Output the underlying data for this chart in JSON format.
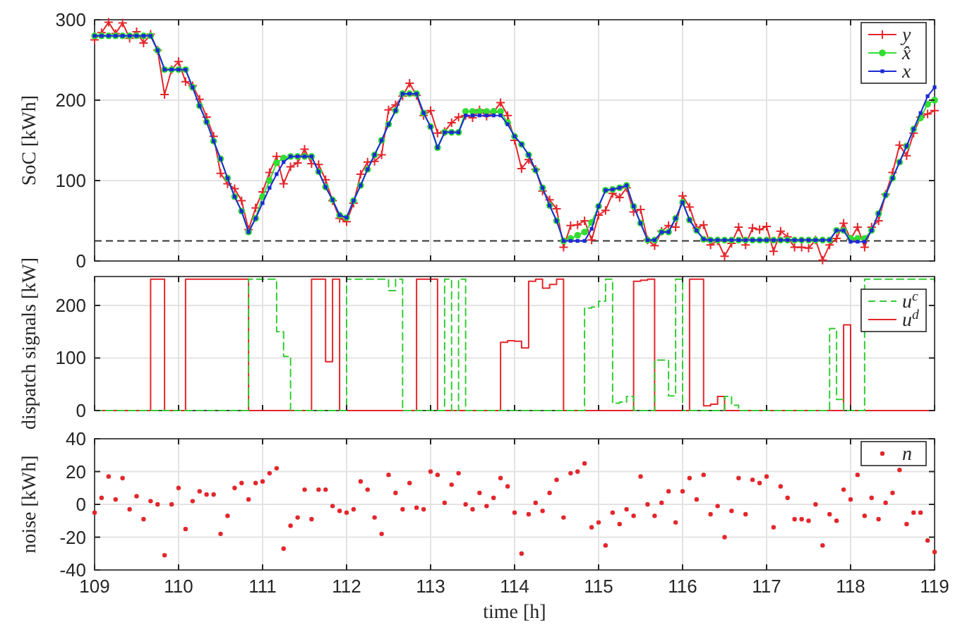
{
  "chart_data": [
    {
      "type": "line",
      "ylabel": "SoC [kWh]",
      "xlim": [
        109,
        119
      ],
      "xticks": [
        109,
        110,
        111,
        112,
        113,
        114,
        115,
        116,
        117,
        118,
        119
      ],
      "ylim": [
        0,
        300
      ],
      "yticks": [
        0,
        100,
        200,
        300
      ],
      "tick_labels": "y",
      "grid": true,
      "legend": "top right",
      "x": [
        109,
        109.083,
        109.167,
        109.25,
        109.333,
        109.417,
        109.5,
        109.583,
        109.667,
        109.75,
        109.833,
        109.917,
        110,
        110.083,
        110.167,
        110.25,
        110.333,
        110.417,
        110.5,
        110.583,
        110.667,
        110.75,
        110.833,
        110.917,
        111,
        111.083,
        111.167,
        111.25,
        111.333,
        111.417,
        111.5,
        111.583,
        111.667,
        111.75,
        111.833,
        111.917,
        112,
        112.083,
        112.167,
        112.25,
        112.333,
        112.417,
        112.5,
        112.583,
        112.667,
        112.75,
        112.833,
        112.917,
        113,
        113.083,
        113.167,
        113.25,
        113.333,
        113.417,
        113.5,
        113.583,
        113.667,
        113.75,
        113.833,
        113.917,
        114,
        114.083,
        114.167,
        114.25,
        114.333,
        114.417,
        114.5,
        114.583,
        114.667,
        114.75,
        114.833,
        114.917,
        115,
        115.083,
        115.167,
        115.25,
        115.333,
        115.417,
        115.5,
        115.583,
        115.667,
        115.75,
        115.833,
        115.917,
        116,
        116.083,
        116.167,
        116.25,
        116.333,
        116.417,
        116.5,
        116.583,
        116.667,
        116.75,
        116.833,
        116.917,
        117,
        117.083,
        117.167,
        117.25,
        117.333,
        117.417,
        117.5,
        117.583,
        117.667,
        117.75,
        117.833,
        117.917,
        118,
        118.083,
        118.167,
        118.25,
        118.333,
        118.417,
        118.5,
        118.583,
        118.667,
        118.75,
        118.833,
        118.917,
        119
      ],
      "ref_lines": [
        {
          "axis": "y",
          "value": 25,
          "color": "#333333",
          "line_style": "dashed"
        }
      ],
      "series": [
        {
          "name": "y",
          "color": "#e3262b",
          "marker": "cross",
          "values": [
            275,
            284,
            297,
            283,
            296,
            277,
            285,
            271,
            282,
            262,
            207,
            238,
            248,
            223,
            218,
            201,
            179,
            155,
            109,
            96,
            90,
            75,
            39,
            66,
            86,
            110,
            130,
            96,
            117,
            122,
            139,
            121,
            120,
            101,
            75,
            53,
            49,
            72,
            108,
            123,
            124,
            132,
            188,
            194,
            205,
            221,
            206,
            181,
            187,
            159,
            161,
            172,
            179,
            181,
            178,
            188,
            180,
            185,
            197,
            181,
            150,
            115,
            126,
            114,
            87,
            76,
            65,
            17,
            44,
            45,
            50,
            26,
            57,
            63,
            84,
            79,
            91,
            61,
            64,
            26,
            19,
            37,
            44,
            42,
            81,
            67,
            41,
            45,
            20,
            25,
            6,
            22,
            42,
            20,
            41,
            39,
            43,
            12,
            37,
            30,
            17,
            17,
            16,
            26,
            1,
            20,
            28,
            47,
            27,
            42,
            17,
            42,
            50,
            83,
            110,
            144,
            131,
            159,
            179,
            183,
            187
          ]
        },
        {
          "name": "x̂",
          "color": "#33dd33",
          "marker": "circle",
          "values": [
            280,
            280,
            280,
            280,
            280,
            280,
            280,
            280,
            280,
            262,
            238,
            238,
            238,
            238,
            216,
            193,
            173,
            149,
            127,
            103,
            80,
            62,
            36,
            53,
            80,
            100,
            122,
            128,
            130,
            130,
            130,
            130,
            111,
            92,
            76,
            57,
            54,
            75,
            94,
            114,
            132,
            150,
            170,
            187,
            208,
            208,
            208,
            184,
            167,
            141,
            160,
            160,
            160,
            186,
            186,
            186,
            186,
            186,
            186,
            172,
            155,
            145,
            132,
            113,
            91,
            69,
            50,
            25,
            28,
            32,
            36,
            48,
            68,
            88,
            89,
            91,
            94,
            68,
            47,
            26,
            26,
            36,
            36,
            53,
            73,
            51,
            38,
            27,
            26,
            26,
            26,
            26,
            26,
            26,
            26,
            26,
            26,
            26,
            26,
            26,
            26,
            26,
            26,
            26,
            26,
            26,
            38,
            38,
            28,
            28,
            28,
            38,
            59,
            82,
            103,
            123,
            143,
            164,
            178,
            195,
            200
          ]
        },
        {
          "name": "x",
          "color": "#1c2ad6",
          "marker": "square",
          "values": [
            280,
            280,
            280,
            280,
            280,
            280,
            280,
            280,
            280,
            262,
            238,
            238,
            238,
            238,
            216,
            193,
            173,
            149,
            127,
            103,
            80,
            62,
            36,
            53,
            72,
            91,
            108,
            123,
            130,
            130,
            130,
            130,
            111,
            92,
            76,
            57,
            54,
            75,
            94,
            114,
            132,
            150,
            170,
            187,
            208,
            208,
            208,
            184,
            167,
            141,
            160,
            160,
            160,
            181,
            181,
            181,
            181,
            181,
            181,
            170,
            155,
            145,
            132,
            113,
            91,
            69,
            50,
            25,
            25,
            25,
            25,
            40,
            68,
            88,
            89,
            91,
            94,
            68,
            47,
            26,
            26,
            36,
            36,
            53,
            73,
            51,
            38,
            27,
            26,
            26,
            26,
            26,
            26,
            26,
            26,
            26,
            26,
            26,
            26,
            26,
            26,
            26,
            26,
            26,
            26,
            26,
            38,
            38,
            24,
            24,
            24,
            38,
            59,
            82,
            103,
            123,
            143,
            164,
            184,
            205,
            216
          ]
        }
      ]
    },
    {
      "type": "step",
      "ylabel": "dispatch signals [kW]",
      "xlim": [
        109,
        119
      ],
      "xticks": [
        109,
        110,
        111,
        112,
        113,
        114,
        115,
        116,
        117,
        118,
        119
      ],
      "ylim": [
        0,
        255
      ],
      "yticks": [
        0,
        100,
        200
      ],
      "tick_labels": "y",
      "grid": true,
      "legend": "top right",
      "x": [
        109,
        109.083,
        109.167,
        109.25,
        109.333,
        109.417,
        109.5,
        109.583,
        109.667,
        109.75,
        109.833,
        109.917,
        110,
        110.083,
        110.167,
        110.25,
        110.333,
        110.417,
        110.5,
        110.583,
        110.667,
        110.75,
        110.833,
        110.917,
        111,
        111.083,
        111.167,
        111.25,
        111.333,
        111.417,
        111.5,
        111.583,
        111.667,
        111.75,
        111.833,
        111.917,
        112,
        112.083,
        112.167,
        112.25,
        112.333,
        112.417,
        112.5,
        112.583,
        112.667,
        112.75,
        112.833,
        112.917,
        113,
        113.083,
        113.167,
        113.25,
        113.333,
        113.417,
        113.5,
        113.583,
        113.667,
        113.75,
        113.833,
        113.917,
        114,
        114.083,
        114.167,
        114.25,
        114.333,
        114.417,
        114.5,
        114.583,
        114.667,
        114.75,
        114.833,
        114.917,
        115,
        115.083,
        115.167,
        115.25,
        115.333,
        115.417,
        115.5,
        115.583,
        115.667,
        115.75,
        115.833,
        115.917,
        116,
        116.083,
        116.167,
        116.25,
        116.333,
        116.417,
        116.5,
        116.583,
        116.667,
        116.75,
        116.833,
        116.917,
        117,
        117.083,
        117.167,
        117.25,
        117.333,
        117.417,
        117.5,
        117.583,
        117.667,
        117.75,
        117.833,
        117.917,
        118,
        118.083,
        118.167,
        118.25,
        118.333,
        118.417,
        118.5,
        118.583,
        118.667,
        118.75,
        118.833,
        118.917,
        119
      ],
      "series": [
        {
          "name": "u$^{c}$",
          "color": "#33cc33",
          "line_style": "dashed",
          "values": [
            0,
            0,
            0,
            0,
            0,
            0,
            0,
            0,
            0,
            0,
            0,
            0,
            0,
            0,
            0,
            0,
            0,
            0,
            0,
            0,
            0,
            0,
            250,
            250,
            250,
            250,
            150,
            103,
            0,
            0,
            0,
            0,
            0,
            0,
            0,
            0,
            250,
            250,
            250,
            250,
            250,
            250,
            228,
            250,
            0,
            0,
            0,
            0,
            0,
            0,
            250,
            0,
            250,
            0,
            0,
            0,
            0,
            0,
            0,
            0,
            0,
            0,
            0,
            0,
            0,
            0,
            0,
            0,
            0,
            0,
            195,
            197,
            208,
            250,
            14,
            16,
            27,
            0,
            0,
            0,
            96,
            96,
            28,
            250,
            0,
            0,
            0,
            0,
            0,
            0,
            27,
            10,
            0,
            0,
            0,
            0,
            0,
            0,
            0,
            0,
            0,
            0,
            0,
            0,
            0,
            156,
            21,
            0,
            0,
            0,
            250,
            250,
            250,
            250,
            250,
            250,
            250,
            250,
            250,
            250,
            250
          ]
        },
        {
          "name": "u$^{d}$",
          "color": "#e3262b",
          "line_style": "solid",
          "values": [
            0,
            0,
            0,
            0,
            0,
            0,
            0,
            0,
            250,
            250,
            0,
            0,
            0,
            250,
            250,
            250,
            250,
            250,
            250,
            250,
            250,
            250,
            0,
            0,
            0,
            0,
            0,
            0,
            0,
            0,
            0,
            250,
            250,
            93,
            250,
            0,
            0,
            0,
            0,
            0,
            0,
            0,
            0,
            0,
            0,
            0,
            250,
            250,
            250,
            0,
            0,
            0,
            0,
            0,
            0,
            0,
            0,
            0,
            130,
            133,
            132,
            119,
            246,
            250,
            233,
            240,
            250,
            0,
            0,
            0,
            0,
            0,
            0,
            0,
            0,
            0,
            0,
            246,
            248,
            250,
            0,
            0,
            0,
            0,
            0,
            250,
            250,
            9,
            12,
            27,
            0,
            0,
            0,
            0,
            0,
            0,
            0,
            0,
            0,
            0,
            0,
            0,
            0,
            0,
            0,
            0,
            0,
            163,
            0,
            0,
            0,
            0,
            0,
            0,
            0,
            0,
            0,
            0,
            0,
            0,
            0
          ]
        }
      ]
    },
    {
      "type": "scatter",
      "xlabel": "time [h]",
      "ylabel": "noise [kWh]",
      "xlim": [
        109,
        119
      ],
      "xticks": [
        109,
        110,
        111,
        112,
        113,
        114,
        115,
        116,
        117,
        118,
        119
      ],
      "ylim": [
        -40,
        40
      ],
      "yticks": [
        -40,
        -20,
        0,
        20,
        40
      ],
      "grid": true,
      "legend": "top right",
      "marker": "circle",
      "x": [
        109,
        109.083,
        109.167,
        109.25,
        109.333,
        109.417,
        109.5,
        109.583,
        109.667,
        109.75,
        109.833,
        109.917,
        110,
        110.083,
        110.167,
        110.25,
        110.333,
        110.417,
        110.5,
        110.583,
        110.667,
        110.75,
        110.833,
        110.917,
        111,
        111.083,
        111.167,
        111.25,
        111.333,
        111.417,
        111.5,
        111.583,
        111.667,
        111.75,
        111.833,
        111.917,
        112,
        112.083,
        112.167,
        112.25,
        112.333,
        112.417,
        112.5,
        112.583,
        112.667,
        112.75,
        112.833,
        112.917,
        113,
        113.083,
        113.167,
        113.25,
        113.333,
        113.417,
        113.5,
        113.583,
        113.667,
        113.75,
        113.833,
        113.917,
        114,
        114.083,
        114.167,
        114.25,
        114.333,
        114.417,
        114.5,
        114.583,
        114.667,
        114.75,
        114.833,
        114.917,
        115,
        115.083,
        115.167,
        115.25,
        115.333,
        115.417,
        115.5,
        115.583,
        115.667,
        115.75,
        115.833,
        115.917,
        116,
        116.083,
        116.167,
        116.25,
        116.333,
        116.417,
        116.5,
        116.583,
        116.667,
        116.75,
        116.833,
        116.917,
        117,
        117.083,
        117.167,
        117.25,
        117.333,
        117.417,
        117.5,
        117.583,
        117.667,
        117.75,
        117.833,
        117.917,
        118,
        118.083,
        118.167,
        118.25,
        118.333,
        118.417,
        118.5,
        118.583,
        118.667,
        118.75,
        118.833,
        118.917,
        119
      ],
      "series": [
        {
          "name": "n",
          "color": "#e3262b",
          "values": [
            -5,
            4,
            17,
            3,
            16,
            -3,
            5,
            -9,
            2,
            0,
            -31,
            0,
            10,
            -15,
            2,
            8,
            6,
            6,
            -18,
            -7,
            10,
            13,
            3,
            13,
            14,
            19,
            22,
            -27,
            -13,
            -8,
            9,
            -9,
            9,
            9,
            -1,
            -4,
            -5,
            -3,
            14,
            9,
            -8,
            -18,
            18,
            7,
            -3,
            13,
            -2,
            -3,
            20,
            18,
            1,
            12,
            19,
            0,
            -3,
            7,
            -1,
            4,
            16,
            11,
            -5,
            -30,
            -6,
            1,
            -4,
            7,
            15,
            -8,
            19,
            20,
            25,
            -14,
            -11,
            -25,
            -5,
            -12,
            -3,
            -7,
            17,
            0,
            -7,
            1,
            8,
            -11,
            8,
            16,
            3,
            18,
            -6,
            -1,
            -20,
            -4,
            16,
            -6,
            15,
            13,
            17,
            -14,
            11,
            4,
            -9,
            -9,
            -10,
            0,
            -25,
            -6,
            -10,
            9,
            3,
            18,
            -7,
            4,
            -9,
            1,
            7,
            21,
            -12,
            -5,
            -5,
            -22,
            -29
          ]
        }
      ]
    }
  ]
}
